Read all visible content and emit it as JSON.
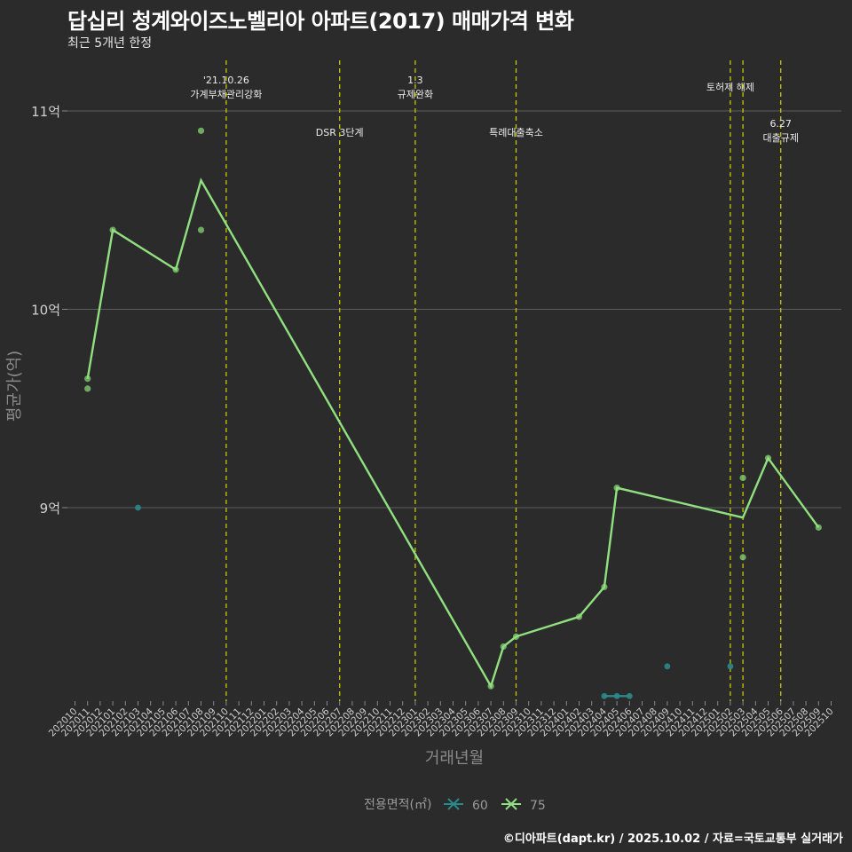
{
  "title": "답십리 청계와이즈노벨리아 아파트(2017) 매매가격 변화",
  "subtitle": "최근 5개년 한정",
  "caption": "©디아파트(dapt.kr) / 2025.10.02 / 자료=국토교통부 실거래가",
  "colors": {
    "background": "#2b2b2b",
    "grid": "#5e5e5e",
    "event_line": "#c8c800",
    "series_60": "#2a8a8a",
    "series_75": "#90e080",
    "point_75": "#7abf6a"
  },
  "chart_data": {
    "type": "line",
    "xlabel": "거래년월",
    "ylabel": "평균가(억)",
    "yunit": "억",
    "ylim": [
      8.05,
      11.25
    ],
    "yticks": [
      9,
      10,
      11
    ],
    "ytick_labels": [
      "9억",
      "10억",
      "11억"
    ],
    "x_months": [
      "202010",
      "202011",
      "202012",
      "202101",
      "202102",
      "202103",
      "202104",
      "202105",
      "202106",
      "202107",
      "202108",
      "202109",
      "202110",
      "202111",
      "202112",
      "202201",
      "202202",
      "202203",
      "202204",
      "202205",
      "202206",
      "202207",
      "202208",
      "202209",
      "202210",
      "202211",
      "202212",
      "202301",
      "202302",
      "202303",
      "202304",
      "202305",
      "202306",
      "202307",
      "202308",
      "202309",
      "202310",
      "202311",
      "202312",
      "202401",
      "202402",
      "202403",
      "202404",
      "202405",
      "202406",
      "202407",
      "202408",
      "202409",
      "202410",
      "202411",
      "202412",
      "202501",
      "202502",
      "202503",
      "202504",
      "202505",
      "202506",
      "202507",
      "202508",
      "202509",
      "202510"
    ],
    "legend_title": "전용면적(㎡)",
    "legend_position": "bottom",
    "series": [
      {
        "name": "60",
        "line": [
          [
            "202404",
            8.05
          ],
          [
            "202405",
            8.05
          ],
          [
            "202406",
            8.05
          ]
        ],
        "points": [
          [
            "202103",
            9.0
          ],
          [
            "202404",
            8.05
          ],
          [
            "202405",
            8.05
          ],
          [
            "202406",
            8.05
          ],
          [
            "202409",
            8.2
          ],
          [
            "202502",
            8.2
          ]
        ]
      },
      {
        "name": "75",
        "line": [
          [
            "202011",
            9.65
          ],
          [
            "202101",
            10.4
          ],
          [
            "202106",
            10.2
          ],
          [
            "202108",
            10.65
          ],
          [
            "202307",
            8.1
          ],
          [
            "202308",
            8.3
          ],
          [
            "202309",
            8.35
          ],
          [
            "202402",
            8.45
          ],
          [
            "202404",
            8.6
          ],
          [
            "202405",
            9.1
          ],
          [
            "202503",
            8.95
          ],
          [
            "202505",
            9.25
          ],
          [
            "202509",
            8.9
          ]
        ],
        "points": [
          [
            "202011",
            9.65
          ],
          [
            "202011",
            9.6
          ],
          [
            "202101",
            10.4
          ],
          [
            "202106",
            10.2
          ],
          [
            "202108",
            10.9
          ],
          [
            "202108",
            10.4
          ],
          [
            "202307",
            8.1
          ],
          [
            "202308",
            8.3
          ],
          [
            "202309",
            8.35
          ],
          [
            "202402",
            8.45
          ],
          [
            "202404",
            8.6
          ],
          [
            "202405",
            9.1
          ],
          [
            "202503",
            9.15
          ],
          [
            "202503",
            8.75
          ],
          [
            "202505",
            9.25
          ],
          [
            "202509",
            8.9
          ]
        ]
      }
    ],
    "events": [
      {
        "month": "202110",
        "label": "'21.10.26\n가계부채관리강화",
        "row": 0
      },
      {
        "month": "202207",
        "label": "DSR 3단계",
        "row": 1
      },
      {
        "month": "202301",
        "label": "1.3\n규제완화",
        "row": 0
      },
      {
        "month": "202309",
        "label": "특례대출축소",
        "row": 1
      },
      {
        "month": "202502",
        "label": "토허제 해제",
        "row": 0
      },
      {
        "month": "202503",
        "label": "",
        "row": 0
      },
      {
        "month": "202506",
        "label": "6.27\n대출규제",
        "row": 1
      }
    ]
  }
}
